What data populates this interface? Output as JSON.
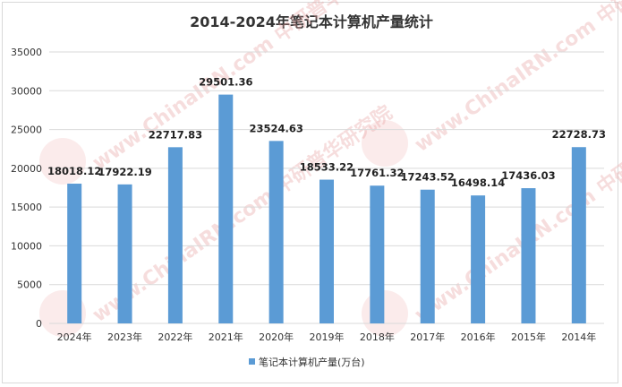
{
  "chart_data": {
    "type": "bar",
    "title": "2014-2024年笔记本计算机产量统计",
    "categories": [
      "2024年",
      "2023年",
      "2022年",
      "2021年",
      "2020年",
      "2019年",
      "2018年",
      "2017年",
      "2016年",
      "2015年",
      "2014年"
    ],
    "series": [
      {
        "name": "笔记本计算机产量(万台)",
        "color": "#5b9bd5",
        "values": [
          18018.12,
          17922.19,
          22717.83,
          29501.36,
          23524.63,
          18533.22,
          17761.32,
          17243.52,
          16498.14,
          17436.03,
          22728.73
        ]
      }
    ],
    "data_labels": [
      "18018.12",
      "17922.19",
      "22717.83",
      "29501.36",
      "23524.63",
      "18533.22",
      "17761.32",
      "17243.52",
      "16498.14",
      "17436.03",
      "22728.73"
    ],
    "yticks": [
      "0",
      "5000",
      "10000",
      "15000",
      "20000",
      "25000",
      "30000",
      "35000"
    ],
    "ylim": [
      0,
      35000
    ],
    "grid": true,
    "legend": "bottom",
    "watermark": "www.ChinaIRN.com 中研普华研究院"
  }
}
